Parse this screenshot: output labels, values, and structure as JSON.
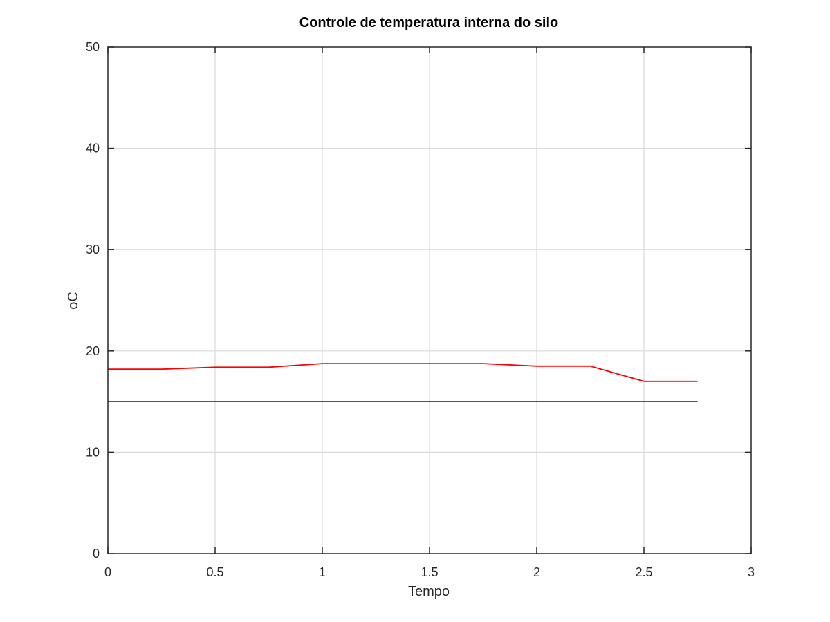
{
  "chart_data": {
    "type": "line",
    "title": "Controle de temperatura interna do silo",
    "xlabel": "Tempo",
    "ylabel": "oC",
    "xlim": [
      0,
      3
    ],
    "ylim": [
      0,
      50
    ],
    "xticks": [
      0,
      0.5,
      1,
      1.5,
      2,
      2.5,
      3
    ],
    "xtick_labels": [
      "0",
      "0.5",
      "1",
      "1.5",
      "2",
      "2.5",
      "3"
    ],
    "yticks": [
      0,
      10,
      20,
      30,
      40,
      50
    ],
    "ytick_labels": [
      "0",
      "10",
      "20",
      "30",
      "40",
      "50"
    ],
    "grid": true,
    "series": [
      {
        "color": "#ff0000",
        "x": [
          0,
          0.25,
          0.5,
          0.75,
          1,
          1.25,
          1.5,
          1.75,
          2,
          2.25,
          2.5,
          2.75
        ],
        "y": [
          18.2,
          18.2,
          18.4,
          18.4,
          18.75,
          18.75,
          18.75,
          18.75,
          18.5,
          18.5,
          17.0,
          17.0
        ]
      },
      {
        "color": "#0000ff",
        "x": [
          0,
          0.25,
          0.5,
          0.75,
          1,
          1.25,
          1.5,
          1.75,
          2,
          2.25,
          2.5,
          2.75
        ],
        "y": [
          15,
          15,
          15,
          15,
          15,
          15,
          15,
          15,
          15,
          15,
          15,
          15
        ]
      }
    ]
  }
}
